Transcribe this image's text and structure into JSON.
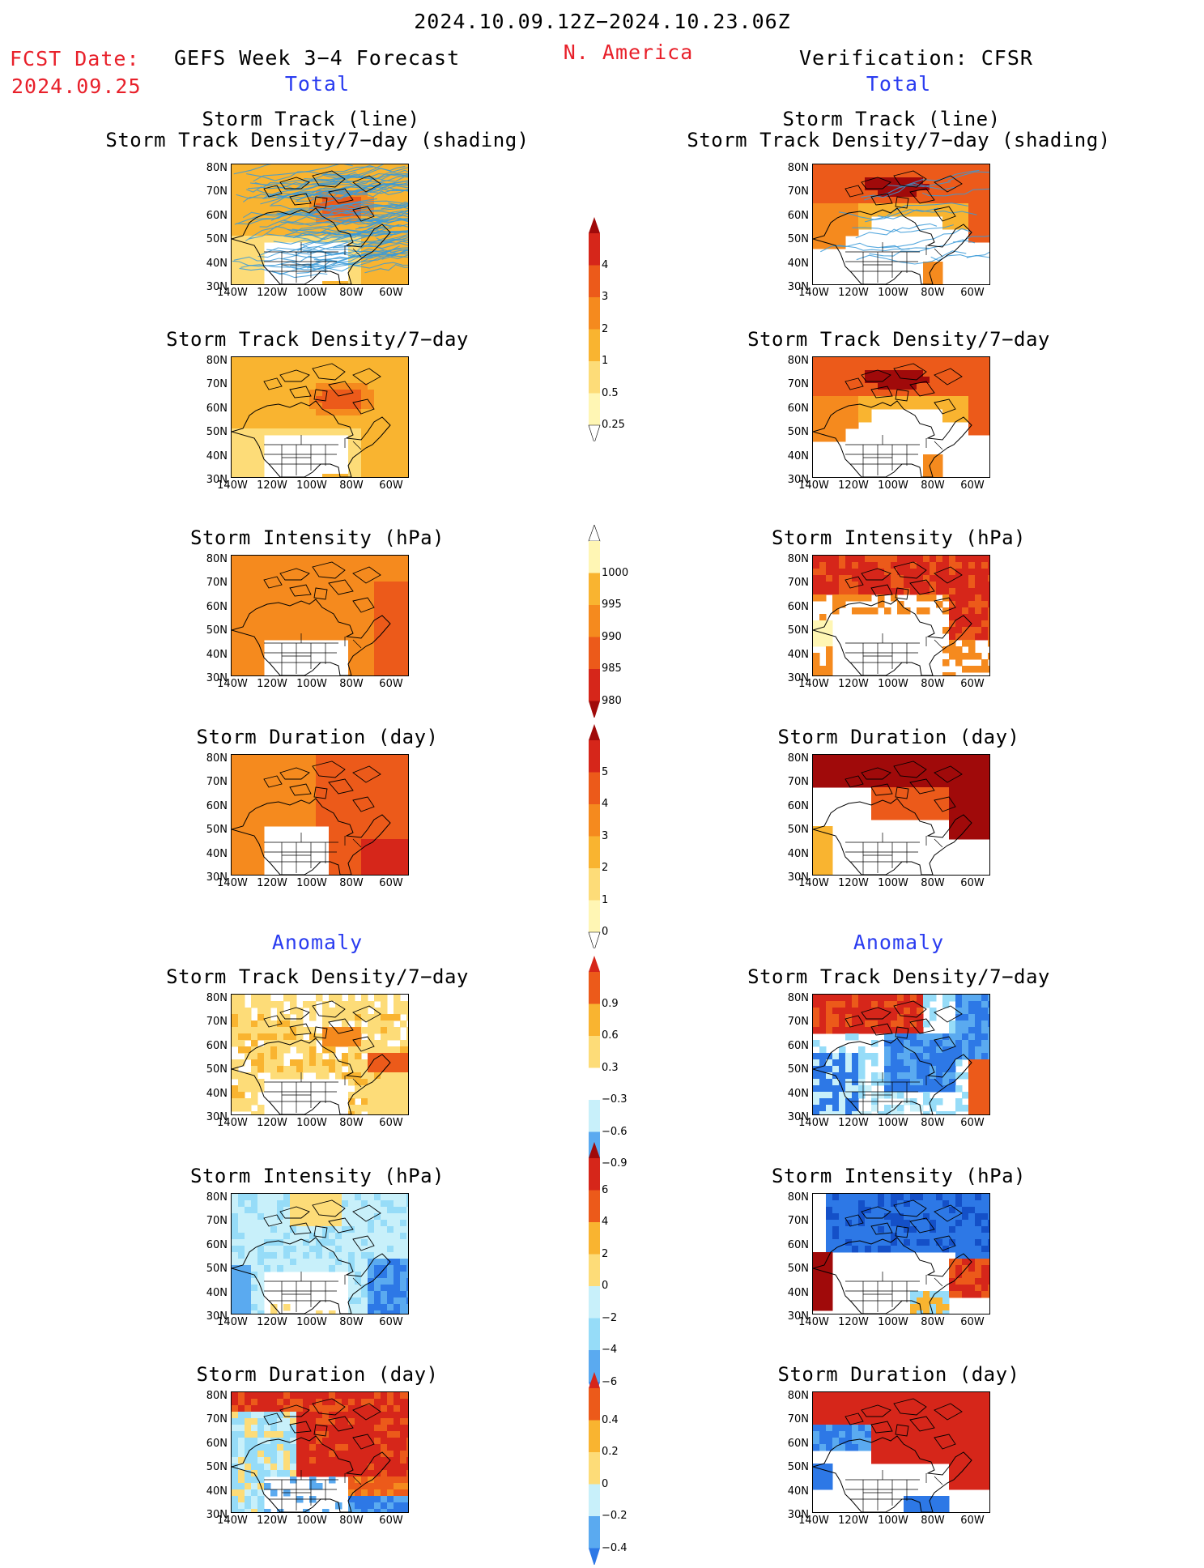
{
  "header": {
    "period": "2024.10.09.12Z−2024.10.23.06Z",
    "region": "N. America",
    "fcst_label": "FCST Date:",
    "fcst_date": "2024.09.25",
    "forecast_title": "GEFS Week 3−4 Forecast",
    "verification_title": "Verification: CFSR",
    "section_total": "Total",
    "section_anomaly": "Anomaly"
  },
  "panel_titles": {
    "track_line": "Storm Track (line)",
    "track_shading": "Storm Track Density/7−day (shading)",
    "density": "Storm Track Density/7−day",
    "intensity": "Storm Intensity (hPa)",
    "duration": "Storm Duration (day)"
  },
  "axes": {
    "lat_labels": [
      "80N",
      "70N",
      "60N",
      "50N",
      "40N",
      "30N"
    ],
    "lon_labels": [
      "140W",
      "120W",
      "100W",
      "80W",
      "60W"
    ]
  },
  "colorbars": {
    "density_total": [
      "4",
      "3",
      "2",
      "1",
      "0.5",
      "0.25"
    ],
    "intensity_total": [
      "1000",
      "995",
      "990",
      "985",
      "980"
    ],
    "duration_total": [
      "5",
      "4",
      "3",
      "2",
      "1",
      "0"
    ],
    "density_anom": [
      "0.9",
      "0.6",
      "0.3",
      "−0.3",
      "−0.6",
      "−0.9"
    ],
    "intensity_anom": [
      "6",
      "4",
      "2",
      "0",
      "−2",
      "−4",
      "−6"
    ],
    "duration_anom": [
      "0.4",
      "0.2",
      "0",
      "−0.2",
      "−0.4"
    ]
  },
  "palette": {
    "warm": [
      "#fff6b4",
      "#fddc78",
      "#f9b430",
      "#f58a1e",
      "#ec5a1a",
      "#d6261a",
      "#a00a0a"
    ],
    "cool": [
      "#c8f0fa",
      "#96dcf8",
      "#5aaaf0",
      "#2d78e6",
      "#1450c8"
    ],
    "track_line": "#3a9ad8"
  }
}
